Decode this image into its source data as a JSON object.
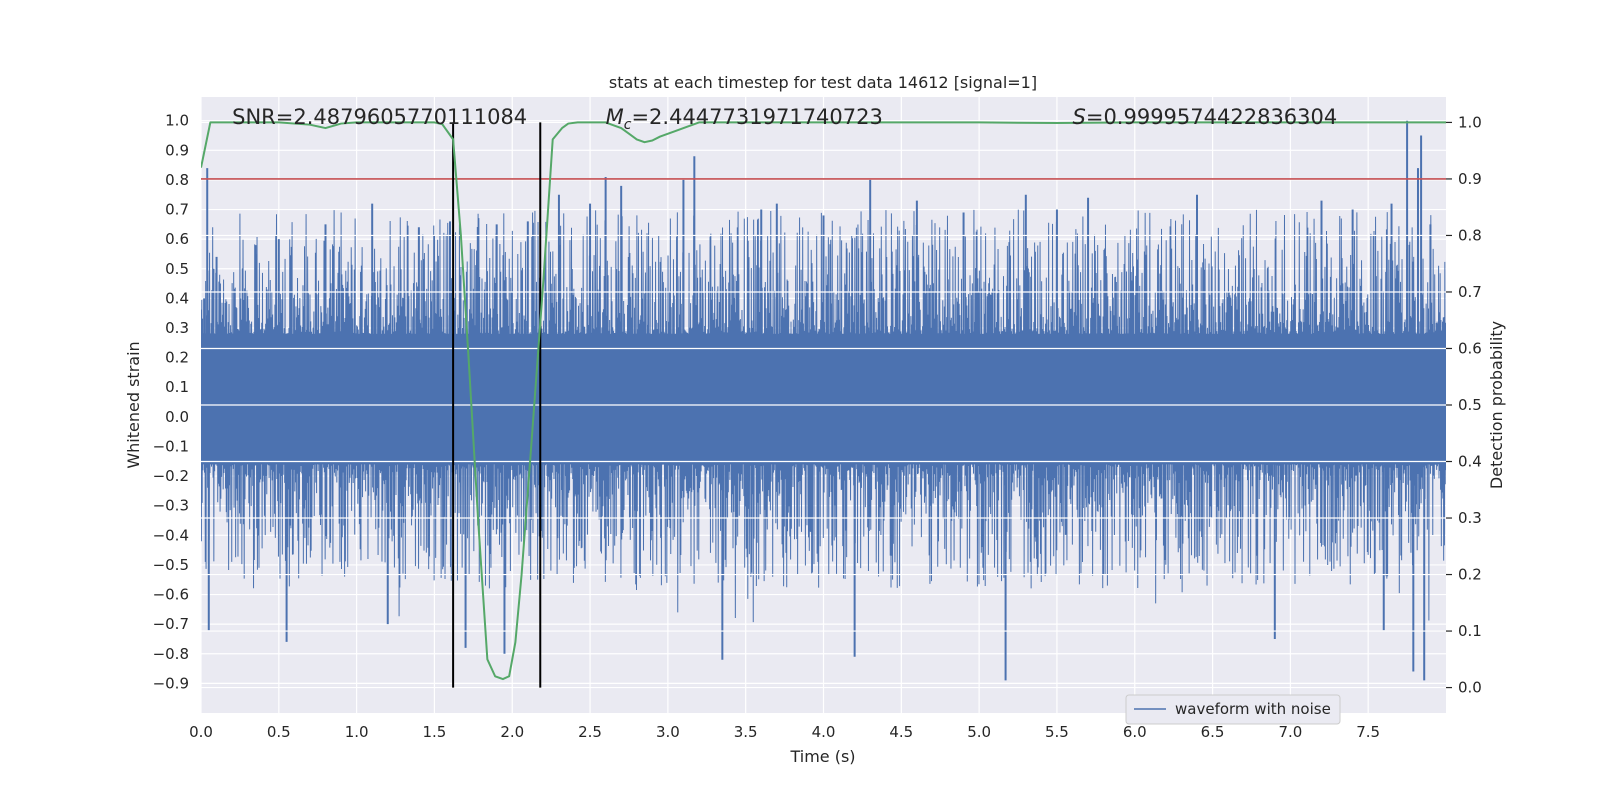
{
  "chart_data": {
    "type": "line",
    "title": "stats at each timestep for test data 14612 [signal=1]",
    "xlabel": "Time (s)",
    "ylabel": "Whitened strain",
    "y2label": "Detection probability",
    "xlim": [
      0.0,
      8.0
    ],
    "ylim": [
      -1.0,
      1.08
    ],
    "y2lim": [
      -0.045,
      1.045
    ],
    "x_ticks": [
      0.0,
      0.5,
      1.0,
      1.5,
      2.0,
      2.5,
      3.0,
      3.5,
      4.0,
      4.5,
      5.0,
      5.5,
      6.0,
      6.5,
      7.0,
      7.5
    ],
    "x_tick_labels": [
      "0.0",
      "0.5",
      "1.0",
      "1.5",
      "2.0",
      "2.5",
      "3.0",
      "3.5",
      "4.0",
      "4.5",
      "5.0",
      "5.5",
      "6.0",
      "6.5",
      "7.0",
      "7.5"
    ],
    "y_ticks": [
      -0.9,
      -0.8,
      -0.7,
      -0.6,
      -0.5,
      -0.4,
      -0.3,
      -0.2,
      -0.1,
      0.0,
      0.1,
      0.2,
      0.3,
      0.4,
      0.5,
      0.6,
      0.7,
      0.8,
      0.9,
      1.0
    ],
    "y_tick_labels": [
      "−0.9",
      "−0.8",
      "−0.7",
      "−0.6",
      "−0.5",
      "−0.4",
      "−0.3",
      "−0.2",
      "−0.1",
      "0.0",
      "0.1",
      "0.2",
      "0.3",
      "0.4",
      "0.5",
      "0.6",
      "0.7",
      "0.8",
      "0.9",
      "1.0"
    ],
    "y2_ticks": [
      0.0,
      0.1,
      0.2,
      0.3,
      0.4,
      0.5,
      0.6,
      0.7,
      0.8,
      0.9,
      1.0
    ],
    "y2_tick_labels": [
      "0.0",
      "0.1",
      "0.2",
      "0.3",
      "0.4",
      "0.5",
      "0.6",
      "0.7",
      "0.8",
      "0.9",
      "1.0"
    ],
    "grid": true,
    "legend_position": "bottom-right",
    "series": [
      {
        "name": "waveform with noise",
        "axis": "left",
        "color": "#4c72b0",
        "kind": "noise-waveform",
        "duration": 8.0,
        "core_envelope": [
          -0.16,
          0.28
        ],
        "spikes": [
          [
            0.02,
            0.4
          ],
          [
            0.04,
            0.84
          ],
          [
            0.05,
            -0.72
          ],
          [
            0.08,
            0.5
          ],
          [
            0.1,
            0.54
          ],
          [
            0.35,
            0.58
          ],
          [
            0.5,
            0.6
          ],
          [
            0.55,
            -0.76
          ],
          [
            0.8,
            0.65
          ],
          [
            1.1,
            0.72
          ],
          [
            1.2,
            -0.7
          ],
          [
            1.4,
            0.64
          ],
          [
            1.6,
            0.66
          ],
          [
            1.7,
            -0.78
          ],
          [
            1.9,
            0.65
          ],
          [
            1.95,
            -0.8
          ],
          [
            2.1,
            0.66
          ],
          [
            2.3,
            0.75
          ],
          [
            2.5,
            0.72
          ],
          [
            2.6,
            0.81
          ],
          [
            2.7,
            0.78
          ],
          [
            3.1,
            0.8
          ],
          [
            3.17,
            0.88
          ],
          [
            3.35,
            -0.82
          ],
          [
            3.6,
            0.7
          ],
          [
            3.7,
            0.72
          ],
          [
            4.0,
            0.68
          ],
          [
            4.2,
            -0.81
          ],
          [
            4.3,
            0.8
          ],
          [
            4.6,
            0.73
          ],
          [
            4.9,
            0.69
          ],
          [
            5.17,
            -0.89
          ],
          [
            5.3,
            0.75
          ],
          [
            5.5,
            0.7
          ],
          [
            5.7,
            0.74
          ],
          [
            6.4,
            0.75
          ],
          [
            6.9,
            -0.75
          ],
          [
            7.2,
            0.73
          ],
          [
            7.4,
            0.7
          ],
          [
            7.6,
            -0.72
          ],
          [
            7.65,
            0.72
          ],
          [
            7.75,
            1.0
          ],
          [
            7.79,
            -0.86
          ],
          [
            7.82,
            0.84
          ],
          [
            7.84,
            0.95
          ],
          [
            7.86,
            -0.89
          ],
          [
            7.9,
            0.65
          ]
        ]
      },
      {
        "name": "",
        "axis": "right",
        "color": "#55a868",
        "kind": "probability",
        "x": [
          0.0,
          0.06,
          0.2,
          0.5,
          0.7,
          0.8,
          0.9,
          1.0,
          1.2,
          1.5,
          1.55,
          1.62,
          1.67,
          1.72,
          1.78,
          1.84,
          1.89,
          1.94,
          1.98,
          2.02,
          2.06,
          2.12,
          2.2,
          2.26,
          2.32,
          2.36,
          2.42,
          2.6,
          2.7,
          2.75,
          2.8,
          2.85,
          2.9,
          2.95,
          3.05,
          3.2,
          3.5,
          4.0,
          5.0,
          5.5,
          6.0,
          7.0,
          7.7,
          8.0
        ],
        "y": [
          0.92,
          1.0,
          1.0,
          1.0,
          0.996,
          0.99,
          0.998,
          1.0,
          1.0,
          1.0,
          0.997,
          0.97,
          0.8,
          0.58,
          0.3,
          0.05,
          0.02,
          0.015,
          0.02,
          0.08,
          0.2,
          0.42,
          0.72,
          0.97,
          0.99,
          0.998,
          1.0,
          1.0,
          0.99,
          0.98,
          0.97,
          0.965,
          0.968,
          0.975,
          0.985,
          1.0,
          1.0,
          1.0,
          1.0,
          0.999,
          1.0,
          1.0,
          1.0,
          1.0
        ]
      }
    ],
    "threshold_line": {
      "axis": "right",
      "value": 0.9,
      "color": "#c44e52"
    },
    "vertical_markers": [
      1.62,
      2.18
    ],
    "annotations": {
      "snr": {
        "label": "SNR=2.4879605770111084",
        "x": 0.2
      },
      "chirp_mass": {
        "prefix": "M",
        "subscript": "c",
        "suffix": "=2.4447731971740723",
        "x": 2.6
      },
      "s": {
        "prefix": "S",
        "suffix": "=0.9999574422836304",
        "x": 5.6
      }
    }
  }
}
